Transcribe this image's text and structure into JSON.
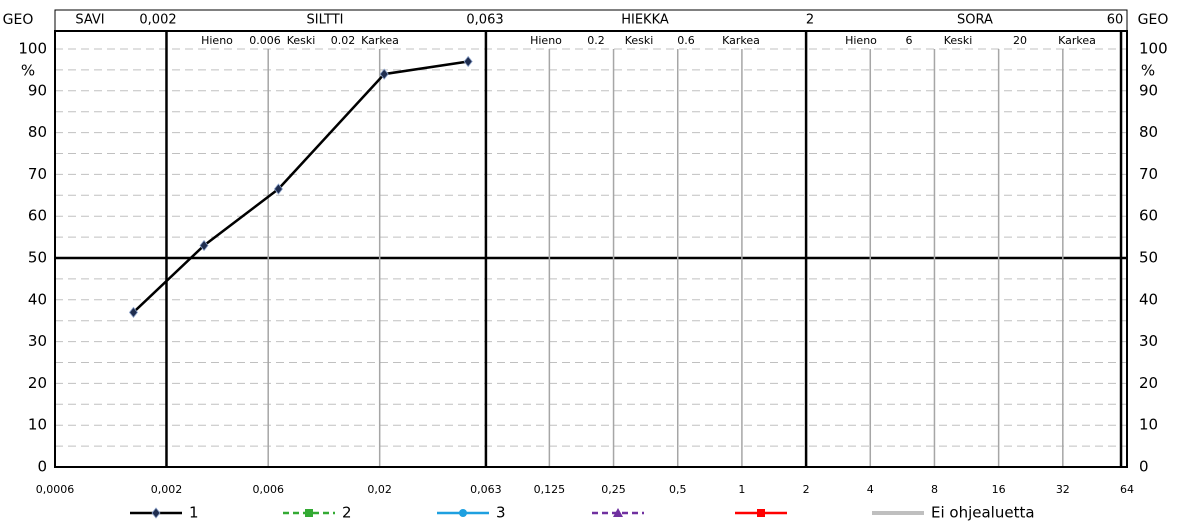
{
  "chart_data": {
    "type": "line",
    "xscale": "log",
    "header": {
      "left_label": "GEO",
      "right_label": "GEO",
      "row1": [
        "SAVI",
        {
          "value": 0.002,
          "label": "0,002"
        },
        "SILTTI",
        {
          "value": 0.063,
          "label": "0,063"
        },
        "HIEKKA",
        2,
        "SORA",
        60
      ],
      "row2": [
        "Hieno",
        "0.006",
        "Keski",
        "0.02",
        "Karkea",
        "Hieno",
        "0.2",
        "Keski",
        "0.6",
        "Karkea",
        "Hieno",
        "6",
        "Keski",
        "20",
        "Karkea"
      ]
    },
    "y_label": "%",
    "xlim": [
      0.0006,
      64
    ],
    "xticks": [
      {
        "value": 0.0006,
        "label": "0,0006"
      },
      {
        "value": 0.002,
        "label": "0,002"
      },
      {
        "value": 0.006,
        "label": "0,006"
      },
      {
        "value": 0.02,
        "label": "0,02"
      },
      {
        "value": 0.063,
        "label": "0,063"
      },
      {
        "value": 0.125,
        "label": "0,125"
      },
      {
        "value": 0.25,
        "label": "0,25"
      },
      {
        "value": 0.5,
        "label": "0,5"
      },
      1,
      2,
      4,
      8,
      16,
      32,
      64
    ],
    "ylim": [
      0,
      100
    ],
    "yticks": [
      0,
      10,
      20,
      30,
      40,
      50,
      60,
      70,
      80,
      90,
      100
    ],
    "grid": true,
    "series": [
      {
        "name": "1",
        "color": "#000000",
        "marker_color": "#1f2d4f",
        "marker": "diamond",
        "dashed": false,
        "x": [
          0.0014,
          0.003,
          0.0067,
          0.021,
          0.052
        ],
        "values": [
          37,
          53,
          66.5,
          94,
          97
        ]
      },
      {
        "name": "2",
        "color": "#33aa33",
        "marker": "square",
        "dashed": true,
        "x": [],
        "values": []
      },
      {
        "name": "3",
        "color": "#1ea0e0",
        "marker": "circle",
        "dashed": false,
        "x": [],
        "values": []
      },
      {
        "name": null,
        "color": "#7030a0",
        "marker": "triangle",
        "dashed": true,
        "x": [],
        "values": []
      },
      {
        "name": null,
        "color": "#ff0000",
        "marker": "square",
        "dashed": false,
        "x": [],
        "values": []
      },
      {
        "name": "Ei ohjealuetta",
        "color": "#bfbfbf",
        "marker": null,
        "dashed": false,
        "x": [],
        "values": []
      }
    ]
  }
}
